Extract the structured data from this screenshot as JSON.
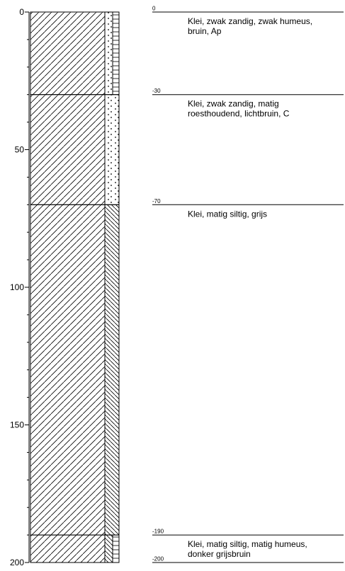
{
  "axis": {
    "min": 0,
    "max": 200,
    "major_ticks": [
      0,
      50,
      100,
      150,
      200
    ],
    "minor_step": 10,
    "labels": [
      "0",
      "50",
      "100",
      "150",
      "200"
    ]
  },
  "layers": [
    {
      "top": 0,
      "bottom": 30,
      "top_label": "0",
      "description": [
        "Klei, zwak zandig, zwak humeus,",
        "bruin, Ap"
      ],
      "main": "clay",
      "side_a": "sand",
      "side_b": "humus",
      "split": 0.55
    },
    {
      "top": 30,
      "bottom": 70,
      "top_label": "-30",
      "description": [
        "Klei, zwak zandig, matig",
        "roesthoudend, lichtbruin, C"
      ],
      "main": "clay",
      "side_a": "sand",
      "side_b": null,
      "split": 0
    },
    {
      "top": 70,
      "bottom": 190,
      "top_label": "-70",
      "description": [
        "Klei, matig siltig, grijs"
      ],
      "main": "clay",
      "side_a": "silt",
      "side_b": null,
      "split": 0
    },
    {
      "top": 190,
      "bottom": 200,
      "top_label": "-190",
      "description": [
        "Klei, matig siltig, matig humeus,",
        "donker grijsbruin"
      ],
      "main": "clay",
      "side_a": "silt",
      "side_b": "humus",
      "split": 0.55
    }
  ],
  "bottom_label": "-200"
}
